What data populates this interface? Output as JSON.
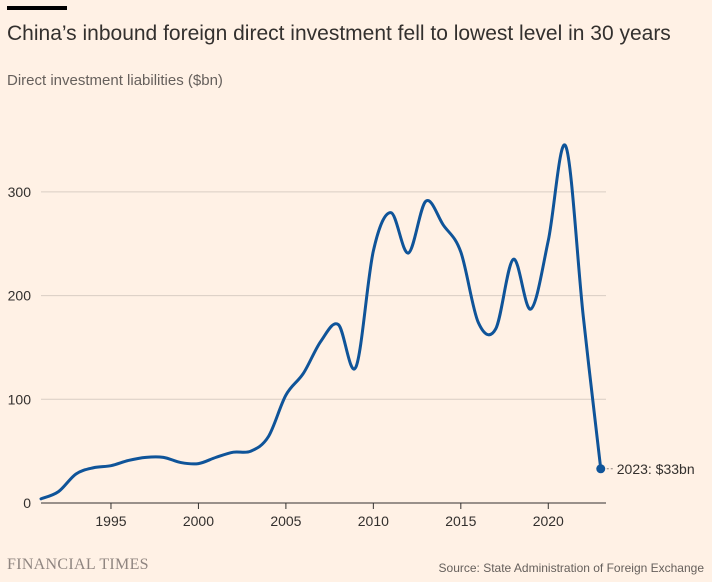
{
  "header": {
    "title": "China’s inbound foreign direct investment fell to lowest level in 30 years",
    "subtitle": "Direct investment liabilities ($bn)"
  },
  "footer": {
    "brand": "FINANCIAL TIMES",
    "source": "Source: State Administration of Foreign Exchange"
  },
  "colors": {
    "background": "#FFF1E5",
    "line": "#0F5499",
    "grid": "#D9CEC4",
    "axis": "#66605C",
    "text": "#33302E"
  },
  "chart_data": {
    "type": "line",
    "title": "China’s inbound foreign direct investment fell to lowest level in 30 years",
    "xlabel": "",
    "ylabel": "Direct investment liabilities ($bn)",
    "xlim": [
      1991,
      2023.3
    ],
    "ylim": [
      0,
      350
    ],
    "grid": true,
    "y_ticks": [
      0,
      100,
      200,
      300
    ],
    "x_ticks": [
      1995,
      2000,
      2005,
      2010,
      2015,
      2020
    ],
    "series": [
      {
        "name": "Direct investment liabilities",
        "x": [
          1991,
          1992,
          1993,
          1994,
          1995,
          1996,
          1997,
          1998,
          1999,
          2000,
          2001,
          2002,
          2003,
          2004,
          2005,
          2006,
          2007,
          2008,
          2009,
          2010,
          2011,
          2012,
          2013,
          2014,
          2015,
          2016,
          2017,
          2018,
          2019,
          2020,
          2021,
          2022,
          2023
        ],
        "y": [
          4,
          11,
          28,
          34,
          36,
          41,
          44,
          44,
          39,
          38,
          44,
          49,
          50,
          64,
          104,
          125,
          156,
          172,
          131,
          243,
          280,
          241,
          291,
          268,
          242,
          174,
          168,
          235,
          187,
          253,
          344,
          180,
          33
        ]
      }
    ],
    "annotations": [
      {
        "x": 2023,
        "y": 33,
        "label": "2023: $33bn"
      }
    ]
  }
}
